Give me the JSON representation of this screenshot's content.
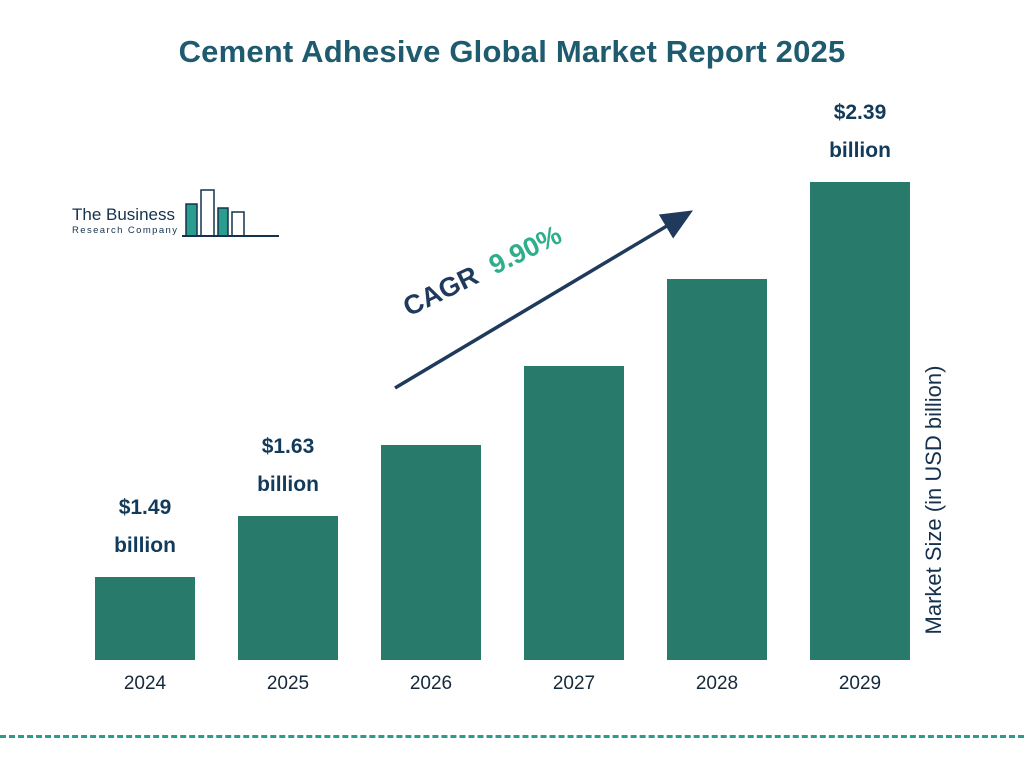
{
  "logo": {
    "line1": "The Business",
    "line2": "Research Company"
  },
  "chart_data": {
    "type": "bar",
    "title": "Cement Adhesive Global Market Report 2025",
    "categories": [
      "2024",
      "2025",
      "2026",
      "2027",
      "2028",
      "2029"
    ],
    "values": [
      1.49,
      1.63,
      1.79,
      1.97,
      2.17,
      2.39
    ],
    "value_labels": [
      "$1.49\nbillion",
      "$1.63\nbillion",
      null,
      null,
      null,
      "$2.39\nbillion"
    ],
    "xlabel": "",
    "ylabel": "Market Size (in USD billion)",
    "unit": "USD billion",
    "grid": false,
    "legend": null,
    "cagr": {
      "label": "CAGR",
      "value": "9.90%"
    },
    "colors": {
      "bar": "#287b6a",
      "title": "#1e5b6e",
      "navy": "#1f3a5c",
      "cagr_green": "#2fae8a",
      "dashed_line": "#2a9d8f"
    }
  }
}
